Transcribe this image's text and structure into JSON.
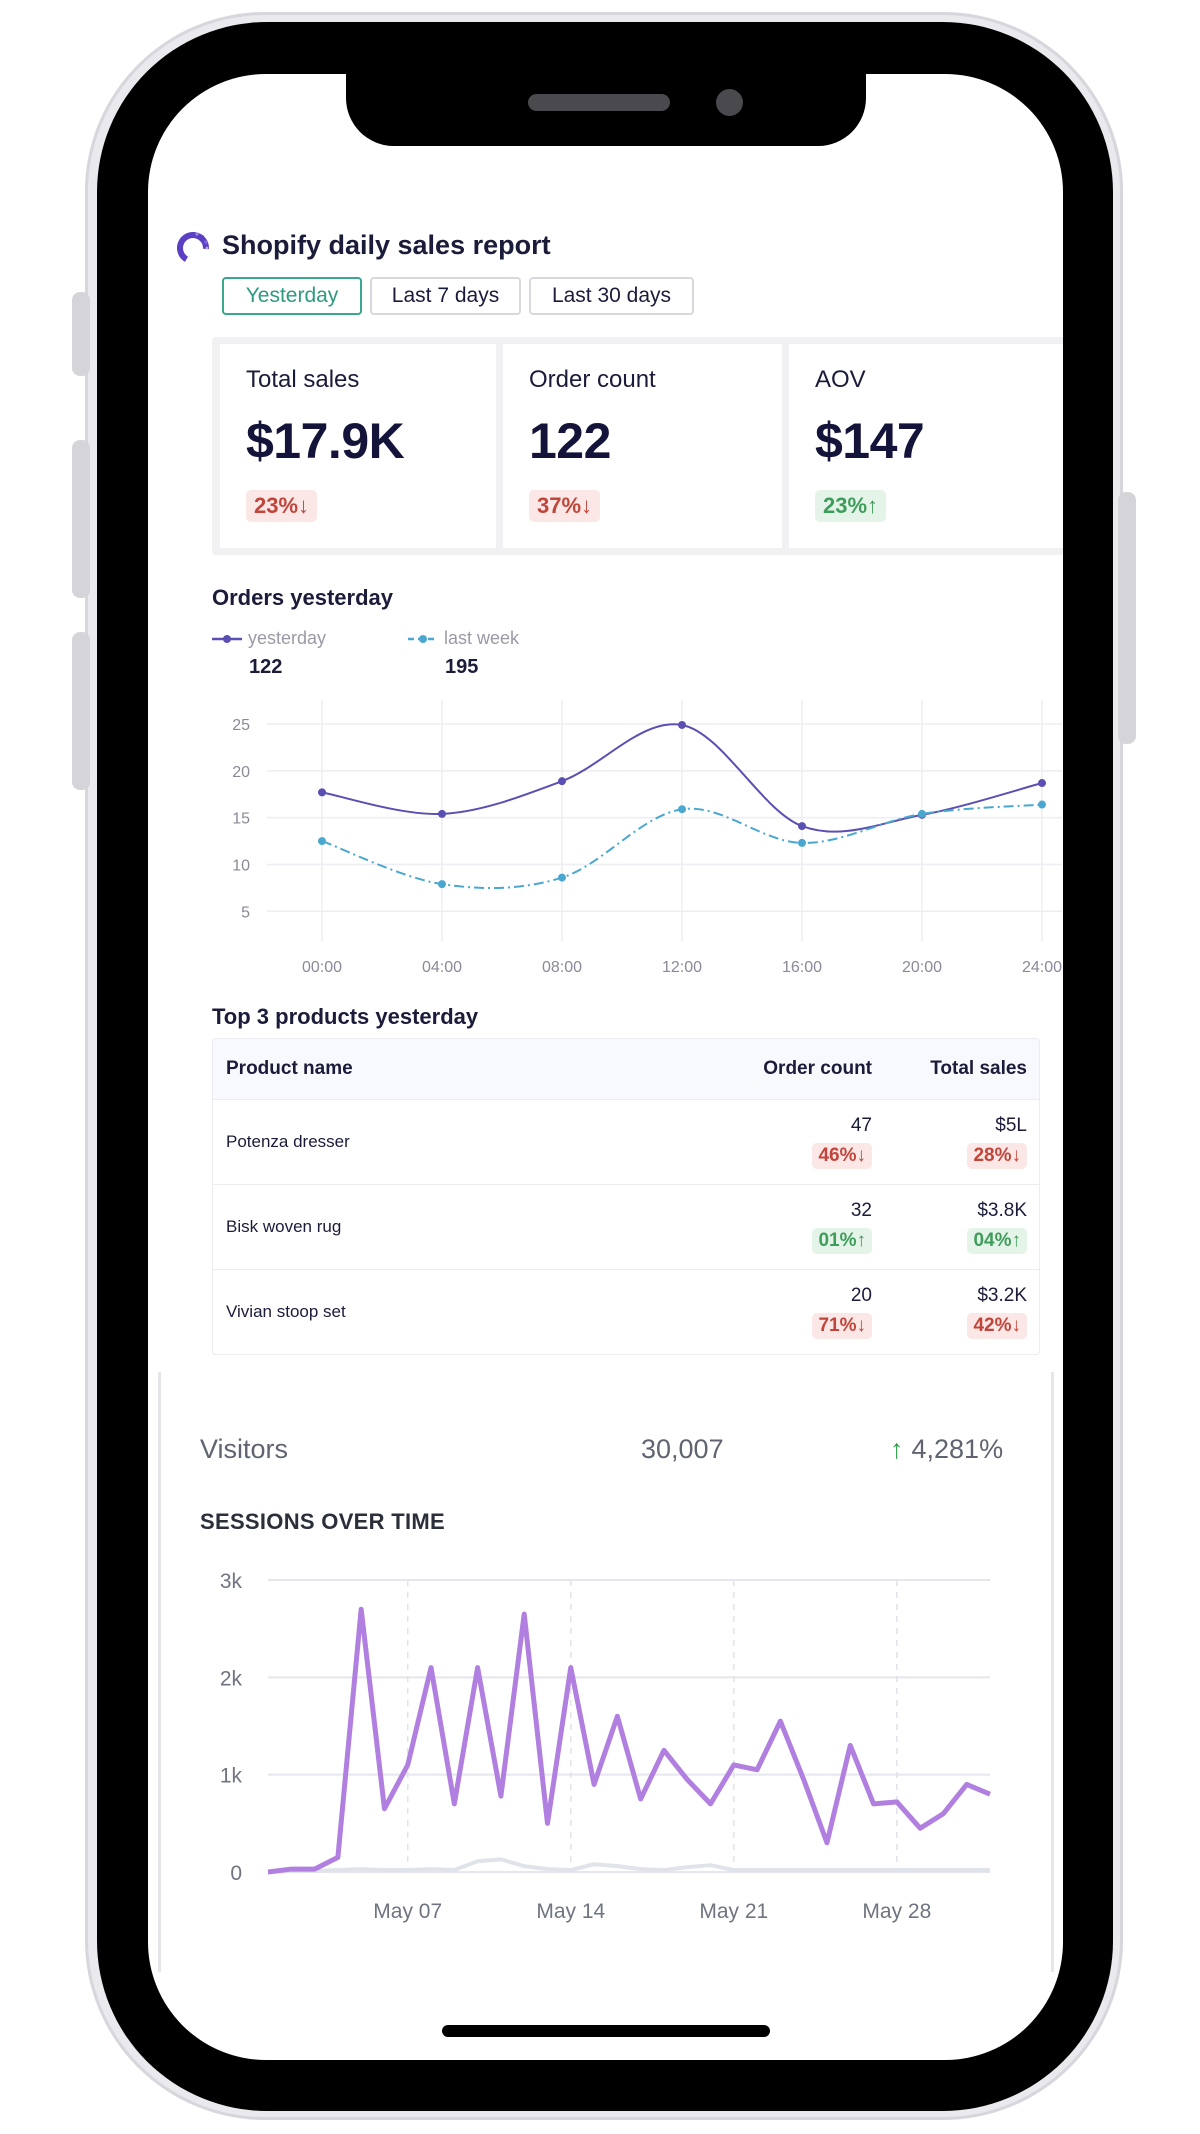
{
  "report": {
    "title": "Shopify daily sales report",
    "tabs": [
      {
        "label": "Yesterday",
        "active": true
      },
      {
        "label": "Last 7 days",
        "active": false
      },
      {
        "label": "Last 30 days",
        "active": false
      }
    ]
  },
  "kpis": [
    {
      "label": "Total sales",
      "value": "$17.9K",
      "change": "23%↓",
      "direction": "down"
    },
    {
      "label": "Order count",
      "value": "122",
      "change": "37%↓",
      "direction": "down"
    },
    {
      "label": "AOV",
      "value": "$147",
      "change": "23%↑",
      "direction": "up"
    }
  ],
  "orders": {
    "title": "Orders yesterday",
    "legend": [
      {
        "name": "yesterday",
        "total": "122",
        "color": "#5b4fb3"
      },
      {
        "name": "last week",
        "total": "195",
        "color": "#4aa8d0"
      }
    ]
  },
  "products": {
    "title": "Top 3 products yesterday",
    "headers": {
      "name": "Product name",
      "orders": "Order count",
      "sales": "Total sales"
    },
    "rows": [
      {
        "name": "Potenza dresser",
        "orders": "47",
        "orders_change": "46%↓",
        "orders_dir": "down",
        "sales": "$5L",
        "sales_change": "28%↓",
        "sales_dir": "down"
      },
      {
        "name": "Bisk woven rug",
        "orders": "32",
        "orders_change": "01%↑",
        "orders_dir": "up",
        "sales": "$3.8K",
        "sales_change": "04%↑",
        "sales_dir": "up"
      },
      {
        "name": "Vivian stoop set",
        "orders": "20",
        "orders_change": "71%↓",
        "orders_dir": "down",
        "sales": "$3.2K",
        "sales_change": "42%↓",
        "sales_dir": "down"
      }
    ]
  },
  "visitors": {
    "label": "Visitors",
    "value": "30,007",
    "change": "4,281%",
    "sessions_title": "SESSIONS OVER TIME"
  },
  "chart_data": [
    {
      "type": "line",
      "title": "Orders yesterday",
      "x": [
        "00:00",
        "04:00",
        "08:00",
        "12:00",
        "16:00",
        "20:00",
        "24:00"
      ],
      "series": [
        {
          "name": "yesterday",
          "values": [
            17.7,
            15.4,
            18.9,
            24.9,
            14.1,
            15.3,
            18.7
          ],
          "color": "#5b4fb3"
        },
        {
          "name": "last week",
          "values": [
            12.5,
            7.9,
            8.6,
            15.9,
            12.3,
            15.4,
            16.4
          ],
          "color": "#4aa8d0"
        }
      ],
      "yticks": [
        5,
        10,
        15,
        20,
        25
      ],
      "ylim": [
        3,
        26.5
      ],
      "grid": true
    },
    {
      "type": "line",
      "title": "SESSIONS OVER TIME",
      "x_start": "May 01",
      "xticks": [
        "May 07",
        "May 14",
        "May 21",
        "May 28"
      ],
      "yticks": [
        "0",
        "1k",
        "2k",
        "3k"
      ],
      "ylim": [
        0,
        3000
      ],
      "series": [
        {
          "name": "",
          "color": "#b07fe0",
          "values": [
            0,
            30,
            30,
            150,
            2700,
            650,
            1100,
            2100,
            700,
            2100,
            780,
            2650,
            500,
            2100,
            900,
            1600,
            750,
            1250,
            950,
            700,
            1100,
            1050,
            1550,
            950,
            300,
            1300,
            700,
            720,
            450,
            600,
            900,
            800
          ]
        },
        {
          "name": "",
          "color": "#e1e3ea",
          "values": [
            0,
            10,
            10,
            20,
            30,
            20,
            20,
            30,
            20,
            110,
            130,
            60,
            30,
            20,
            80,
            60,
            30,
            20,
            50,
            70,
            20,
            20,
            20,
            20,
            20,
            20,
            20,
            20,
            20,
            20,
            20,
            20
          ]
        }
      ],
      "grid": true
    }
  ]
}
